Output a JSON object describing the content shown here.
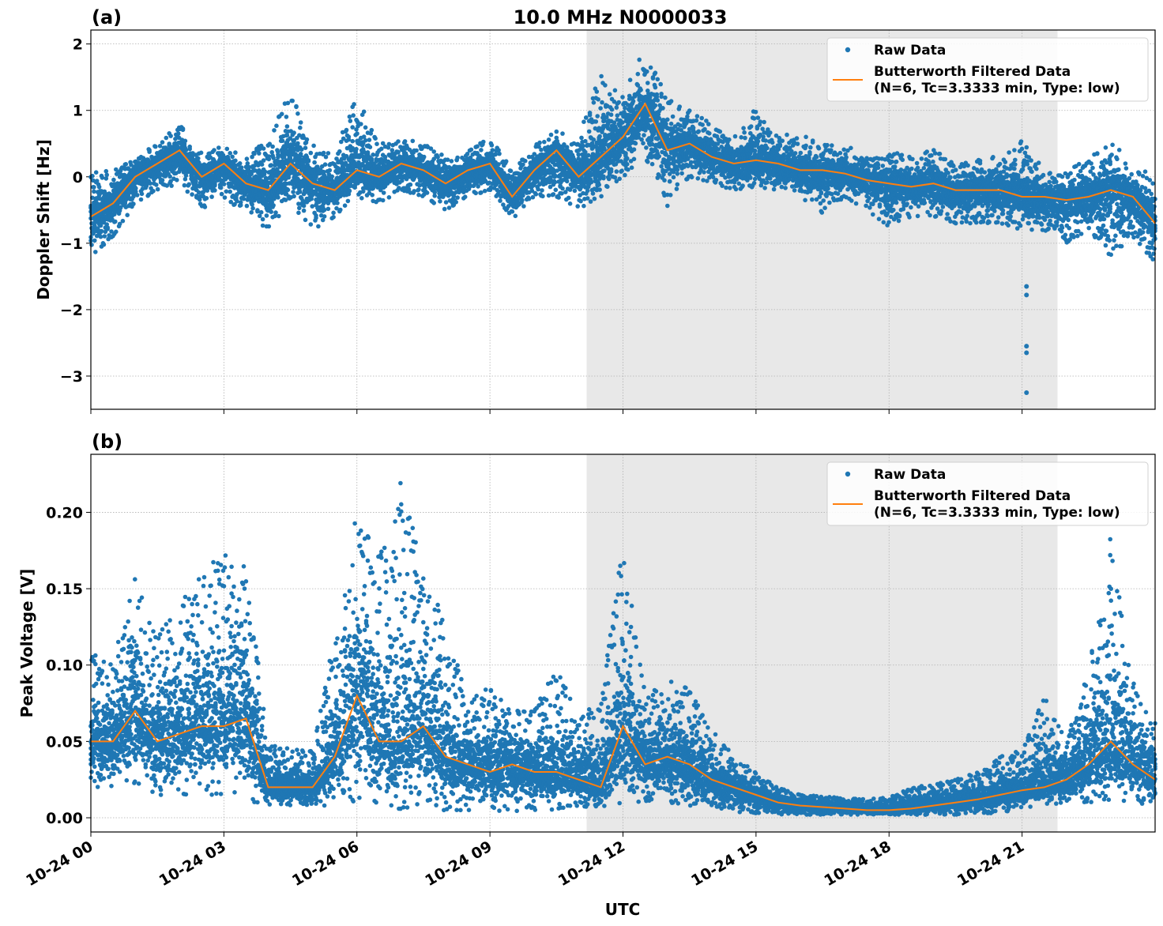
{
  "chart_data": [
    {
      "type": "scatter",
      "panel_label": "(a)",
      "title": "10.0 MHz N0000033",
      "xlabel": "",
      "ylabel": "Doppler Shift [Hz]",
      "ylim": [
        -3.5,
        2.21
      ],
      "xlim_hours": [
        0,
        24
      ],
      "yticks": [
        2,
        1,
        0,
        -1,
        -2,
        -3
      ],
      "ytick_labels": [
        "2",
        "1",
        "0",
        "−1",
        "−2",
        "−3"
      ],
      "grid": true,
      "legend_placement": "top-right",
      "shaded_region_hours": [
        11.18,
        21.8
      ],
      "shaded_color": "#e8e8e8",
      "hours": [
        0,
        0.5,
        1,
        1.5,
        2,
        2.5,
        3,
        3.5,
        4,
        4.5,
        5,
        5.5,
        6,
        6.5,
        7,
        7.5,
        8,
        8.5,
        9,
        9.5,
        10,
        10.5,
        11,
        11.5,
        12,
        12.5,
        13,
        13.5,
        14,
        14.5,
        15,
        15.5,
        16,
        16.5,
        17,
        17.5,
        18,
        18.5,
        19,
        19.5,
        20,
        20.5,
        21,
        21.5,
        22,
        22.5,
        23,
        23.5,
        24
      ],
      "series": [
        {
          "name": "Butterworth Filtered Data\n(N=6, Tc=3.3333 min, Type: low)",
          "color": "#ff7f0e",
          "kind": "line",
          "values": [
            -0.6,
            -0.4,
            0.0,
            0.2,
            0.4,
            0.0,
            0.2,
            -0.1,
            -0.2,
            0.2,
            -0.1,
            -0.2,
            0.1,
            0.0,
            0.2,
            0.1,
            -0.1,
            0.1,
            0.2,
            -0.3,
            0.1,
            0.4,
            0.0,
            0.3,
            0.6,
            1.1,
            0.4,
            0.5,
            0.3,
            0.2,
            0.25,
            0.2,
            0.1,
            0.1,
            0.05,
            -0.05,
            -0.1,
            -0.15,
            -0.1,
            -0.2,
            -0.2,
            -0.2,
            -0.3,
            -0.3,
            -0.35,
            -0.3,
            -0.2,
            -0.3,
            -0.7
          ]
        },
        {
          "name": "Raw Data",
          "color": "#1f77b4",
          "kind": "scatter",
          "low": [
            -1.2,
            -0.9,
            -0.4,
            -0.2,
            -0.1,
            -0.5,
            -0.3,
            -0.6,
            -0.8,
            -0.4,
            -0.8,
            -0.6,
            -0.3,
            -0.4,
            -0.2,
            -0.3,
            -0.5,
            -0.3,
            -0.2,
            -0.65,
            -0.3,
            -0.3,
            -0.5,
            -0.3,
            0.0,
            0.3,
            -0.45,
            0.0,
            -0.1,
            -0.2,
            -0.15,
            -0.2,
            -0.3,
            -0.55,
            -0.3,
            -0.5,
            -0.75,
            -0.6,
            -0.6,
            -0.7,
            -0.7,
            -0.7,
            -0.8,
            -0.8,
            -1.0,
            -0.8,
            -1.2,
            -0.9,
            -1.3
          ],
          "high": [
            0.1,
            0.1,
            0.3,
            0.5,
            0.8,
            0.4,
            0.45,
            0.3,
            0.6,
            1.3,
            0.5,
            0.3,
            1.4,
            0.5,
            0.6,
            0.5,
            0.3,
            0.4,
            0.6,
            0.1,
            0.5,
            0.7,
            0.6,
            1.6,
            1.3,
            1.95,
            1.2,
            1.0,
            0.8,
            0.6,
            1.05,
            0.6,
            0.7,
            0.5,
            0.5,
            0.3,
            0.4,
            0.3,
            0.45,
            0.2,
            0.3,
            0.3,
            0.55,
            0.1,
            0.1,
            0.35,
            0.55,
            0.2,
            0.0
          ],
          "outliers": [
            [
              21.1,
              -1.65
            ],
            [
              21.1,
              -1.78
            ],
            [
              21.1,
              -2.55
            ],
            [
              21.1,
              -2.65
            ],
            [
              21.1,
              -3.25
            ]
          ]
        }
      ]
    },
    {
      "type": "scatter",
      "panel_label": "(b)",
      "xlabel": "UTC",
      "ylabel": "Peak Voltage [V]",
      "ylim": [
        -0.0093,
        0.238
      ],
      "xlim_hours": [
        0,
        24
      ],
      "yticks": [
        0.0,
        0.05,
        0.1,
        0.15,
        0.2
      ],
      "ytick_labels": [
        "0.00",
        "0.05",
        "0.10",
        "0.15",
        "0.20"
      ],
      "xtick_hours": [
        0,
        3,
        6,
        9,
        12,
        15,
        18,
        21
      ],
      "xtick_labels": [
        "10-24 00",
        "10-24 03",
        "10-24 06",
        "10-24 09",
        "10-24 12",
        "10-24 15",
        "10-24 18",
        "10-24 21"
      ],
      "grid": true,
      "legend_placement": "top-right",
      "shaded_region_hours": [
        11.18,
        21.8
      ],
      "shaded_color": "#e8e8e8",
      "hours": [
        0,
        0.5,
        1,
        1.5,
        2,
        2.5,
        3,
        3.5,
        4,
        4.5,
        5,
        5.5,
        6,
        6.5,
        7,
        7.5,
        8,
        8.5,
        9,
        9.5,
        10,
        10.5,
        11,
        11.5,
        12,
        12.5,
        13,
        13.5,
        14,
        14.5,
        15,
        15.5,
        16,
        16.5,
        17,
        17.5,
        18,
        18.5,
        19,
        19.5,
        20,
        20.5,
        21,
        21.5,
        22,
        22.5,
        23,
        23.5,
        24
      ],
      "series": [
        {
          "name": "Butterworth Filtered Data\n(N=6, Tc=3.3333 min, Type: low)",
          "color": "#ff7f0e",
          "kind": "line",
          "values": [
            0.05,
            0.05,
            0.07,
            0.05,
            0.055,
            0.06,
            0.06,
            0.065,
            0.02,
            0.02,
            0.02,
            0.04,
            0.08,
            0.05,
            0.05,
            0.06,
            0.04,
            0.035,
            0.03,
            0.035,
            0.03,
            0.03,
            0.025,
            0.02,
            0.06,
            0.035,
            0.04,
            0.035,
            0.025,
            0.02,
            0.015,
            0.01,
            0.008,
            0.007,
            0.006,
            0.005,
            0.005,
            0.006,
            0.008,
            0.01,
            0.012,
            0.015,
            0.018,
            0.02,
            0.025,
            0.035,
            0.05,
            0.035,
            0.025
          ]
        },
        {
          "name": "Raw Data",
          "color": "#1f77b4",
          "kind": "scatter",
          "low": [
            0.02,
            0.02,
            0.02,
            0.015,
            0.015,
            0.015,
            0.015,
            0.01,
            0.008,
            0.008,
            0.008,
            0.008,
            0.01,
            0.01,
            0.005,
            0.005,
            0.005,
            0.005,
            0.005,
            0.004,
            0.005,
            0.005,
            0.008,
            0.005,
            0.01,
            0.01,
            0.01,
            0.008,
            0.005,
            0.004,
            0.003,
            0.002,
            0.002,
            0.002,
            0.002,
            0.002,
            0.002,
            0.002,
            0.002,
            0.002,
            0.003,
            0.003,
            0.005,
            0.008,
            0.01,
            0.01,
            0.012,
            0.01,
            0.008
          ],
          "high": [
            0.11,
            0.1,
            0.165,
            0.12,
            0.15,
            0.16,
            0.175,
            0.165,
            0.05,
            0.045,
            0.045,
            0.12,
            0.205,
            0.17,
            0.225,
            0.16,
            0.13,
            0.08,
            0.085,
            0.07,
            0.07,
            0.1,
            0.065,
            0.08,
            0.18,
            0.08,
            0.09,
            0.085,
            0.06,
            0.04,
            0.03,
            0.02,
            0.015,
            0.014,
            0.013,
            0.012,
            0.014,
            0.02,
            0.022,
            0.025,
            0.03,
            0.04,
            0.045,
            0.08,
            0.05,
            0.1,
            0.19,
            0.09,
            0.065
          ]
        }
      ]
    }
  ],
  "legend": {
    "raw_label": "Raw Data",
    "filtered_label_line1": "Butterworth Filtered Data",
    "filtered_label_line2": "(N=6, Tc=3.3333 min, Type: low)"
  }
}
